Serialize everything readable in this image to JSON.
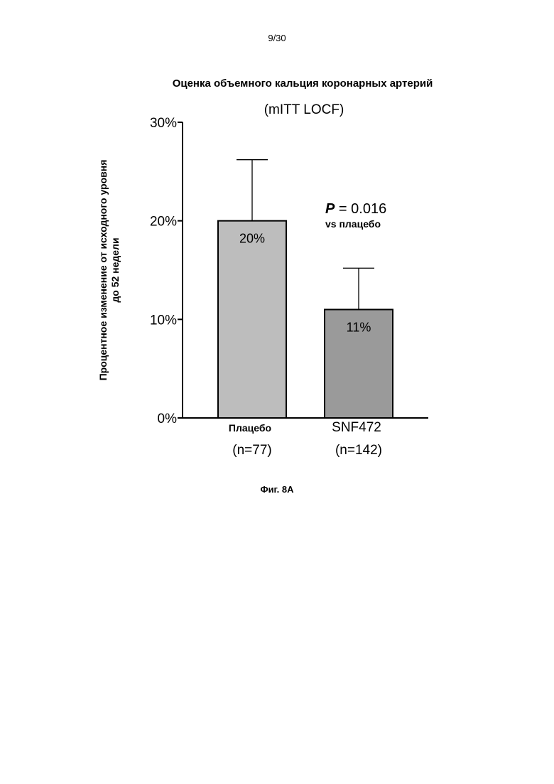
{
  "page": {
    "page_number": "9/30",
    "figure_caption": "Фиг. 8А"
  },
  "chart_data": {
    "type": "bar",
    "title": "Оценка объемного кальция коронарных артерий",
    "subtitle": "(mITT LOCF)",
    "ylabel_line1": "Процентное изменение от исходного уровня",
    "ylabel_line2": "до 52 недели",
    "xlabel": "",
    "ylim": [
      0,
      30
    ],
    "yticks": [
      0,
      10,
      20,
      30
    ],
    "ytick_labels": [
      "0%",
      "10%",
      "20%",
      "30%"
    ],
    "categories": [
      "Плацебо",
      "SNF472"
    ],
    "category_n": [
      "(n=77)",
      "(n=142)"
    ],
    "values": [
      20,
      11
    ],
    "value_labels": [
      "20%",
      "11%"
    ],
    "error_upper": [
      26.2,
      15.2
    ],
    "bar_colors": [
      "#bdbdbd",
      "#9a9a9a"
    ],
    "annotation": {
      "p_symbol": "P",
      "p_text": " = 0.016",
      "p_sub": "vs плацебо"
    },
    "grid": false,
    "legend": "none"
  }
}
